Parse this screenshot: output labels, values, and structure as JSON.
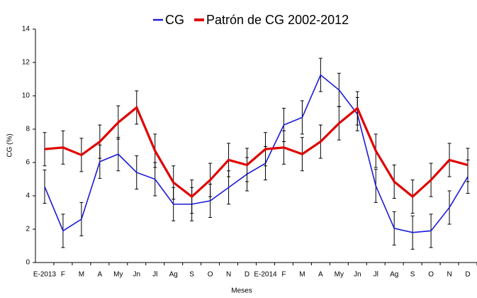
{
  "chart_data": {
    "type": "line",
    "x_label": "Meses",
    "y_label": "CG (%)",
    "categories": [
      "E-2013",
      "F",
      "M",
      "A",
      "My",
      "Jn",
      "Jl",
      "Ag",
      "S",
      "O",
      "N",
      "D",
      "E-2014",
      "F",
      "M",
      "A",
      "My",
      "Jn",
      "Jl",
      "Ag",
      "S",
      "O",
      "N",
      "D"
    ],
    "series": [
      {
        "name": "CG",
        "color": "#1a1ad6",
        "width": 1.6,
        "values": [
          4.55,
          1.9,
          2.6,
          6.05,
          6.5,
          5.4,
          5.0,
          3.5,
          3.5,
          3.7,
          4.5,
          5.3,
          5.95,
          8.25,
          8.7,
          11.25,
          10.35,
          8.9,
          4.6,
          2.05,
          1.8,
          1.9,
          3.3,
          5.15
        ],
        "errors": [
          1,
          1,
          1,
          1,
          1,
          1,
          1,
          1,
          1,
          1,
          1,
          1,
          1,
          1,
          1,
          1,
          1,
          1,
          1,
          1,
          1,
          1,
          1,
          1
        ]
      },
      {
        "name": "Patrón  de CG 2002-2012",
        "color": "#e00000",
        "width": 3.2,
        "values": [
          6.8,
          6.9,
          6.45,
          7.25,
          8.4,
          9.3,
          6.7,
          4.8,
          3.95,
          4.95,
          6.15,
          5.85,
          6.8,
          6.9,
          6.5,
          7.25,
          8.35,
          9.25,
          6.7,
          4.85,
          3.95,
          4.95,
          6.15,
          5.85
        ],
        "errors": [
          1,
          1,
          1,
          1,
          1,
          1,
          1,
          1,
          1,
          1,
          1,
          1,
          1,
          1,
          1,
          1,
          1,
          1,
          1,
          1,
          1,
          1,
          1,
          1
        ]
      }
    ],
    "ylim": [
      0,
      14
    ],
    "yticks": [
      0,
      2,
      4,
      6,
      8,
      10,
      12,
      14
    ],
    "legend": "top"
  }
}
